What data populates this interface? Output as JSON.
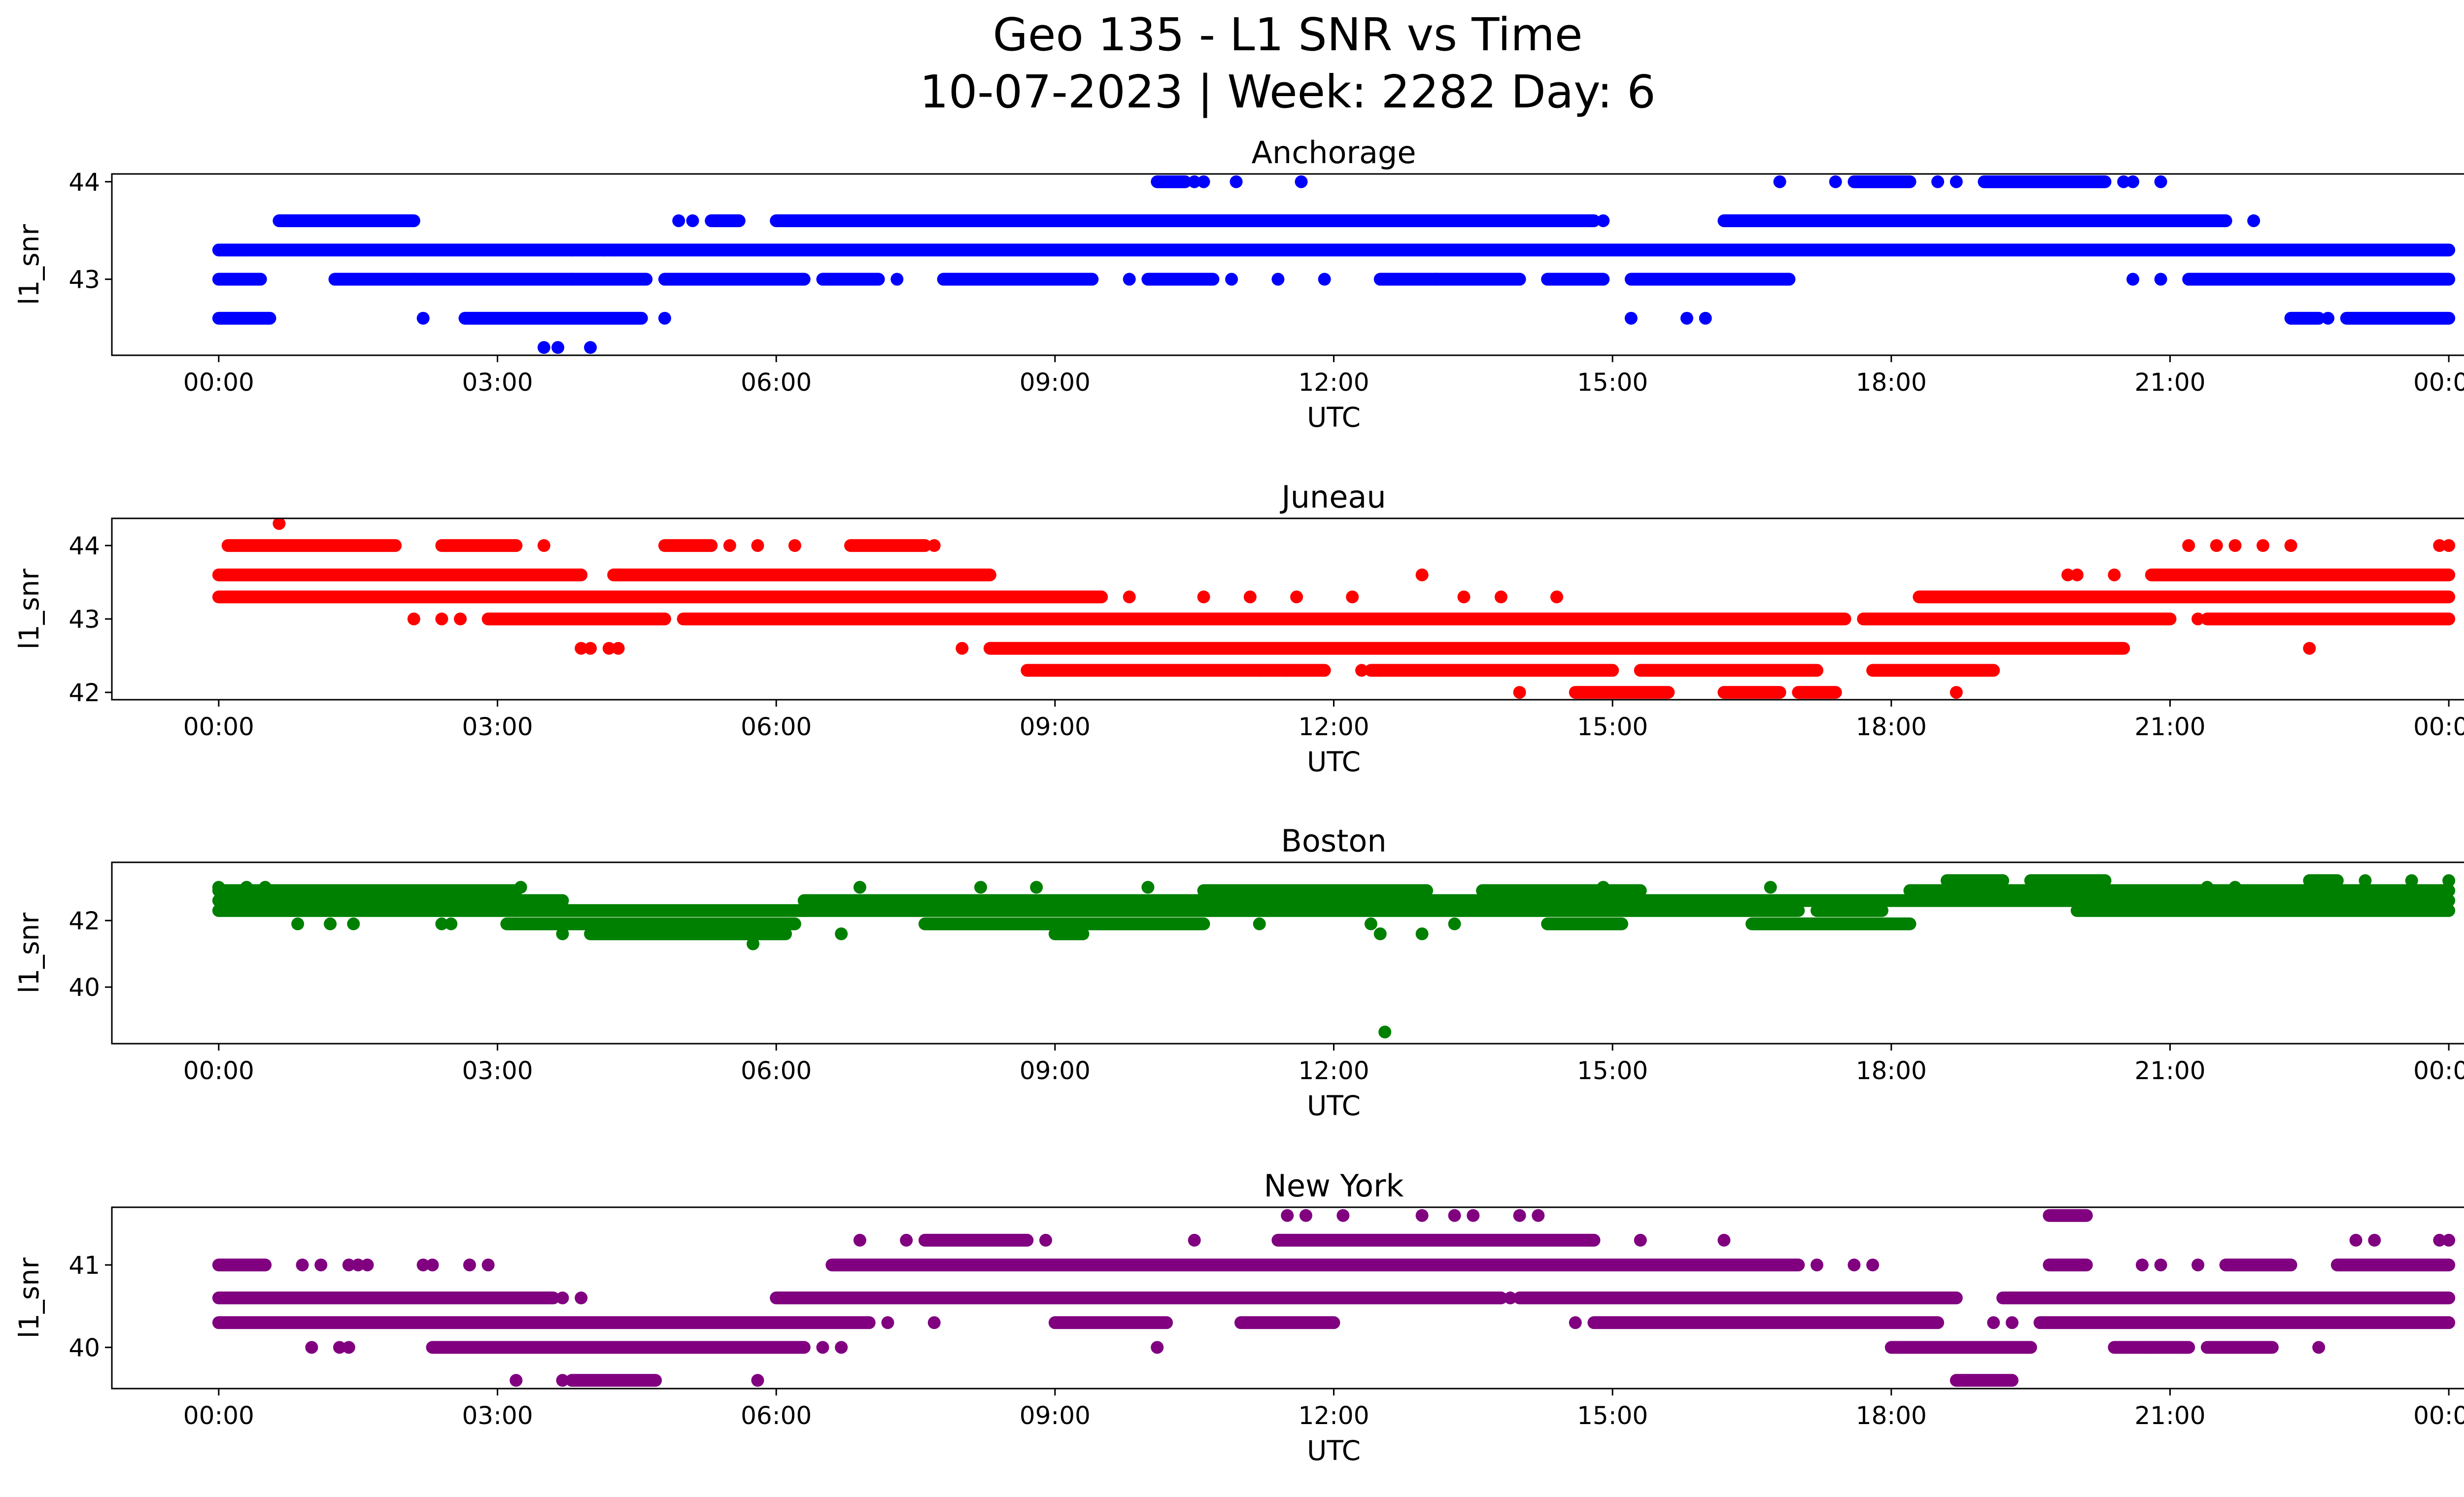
{
  "page": {
    "title_line1": "Geo 135 - L1 SNR vs Time",
    "title_line2": "10-07-2023 | Week: 2282 Day: 6"
  },
  "chart_data": [
    {
      "type": "scatter",
      "title": "Anchorage",
      "xlabel": "UTC",
      "ylabel": "l1_snr",
      "color": "#0000ff",
      "xlim_hours": [
        -1.15,
        25.15
      ],
      "ylim": [
        42.22,
        44.08
      ],
      "yticks": [
        43,
        44
      ],
      "ytick_labels": [
        "43",
        "44"
      ],
      "xticks_hours": [
        0,
        3,
        6,
        9,
        12,
        15,
        18,
        21,
        24
      ],
      "xtick_labels": [
        "00:00",
        "03:00",
        "06:00",
        "09:00",
        "12:00",
        "15:00",
        "18:00",
        "21:00",
        "00:00"
      ],
      "bands": [
        {
          "y": 43.3,
          "ranges": [
            [
              0.0,
              24.0
            ]
          ]
        },
        {
          "y": 43.0,
          "ranges": [
            [
              0.0,
              0.45
            ],
            [
              1.25,
              4.6
            ],
            [
              4.8,
              6.3
            ],
            [
              6.5,
              7.1
            ],
            [
              7.8,
              9.4
            ],
            [
              10.0,
              10.7
            ],
            [
              12.5,
              14.0
            ],
            [
              14.3,
              14.9
            ],
            [
              15.2,
              16.9
            ],
            [
              21.2,
              24.0
            ]
          ]
        },
        {
          "y": 43.6,
          "ranges": [
            [
              0.65,
              2.1
            ],
            [
              5.3,
              5.6
            ],
            [
              6.0,
              8.2
            ],
            [
              8.2,
              14.8
            ],
            [
              16.2,
              21.6
            ]
          ]
        },
        {
          "y": 42.6,
          "ranges": [
            [
              0.0,
              0.55
            ],
            [
              2.65,
              4.55
            ],
            [
              22.3,
              22.6
            ],
            [
              22.9,
              24.0
            ]
          ]
        },
        {
          "y": 44.0,
          "ranges": [
            [
              10.1,
              10.4
            ],
            [
              17.6,
              18.2
            ],
            [
              19.0,
              20.3
            ]
          ]
        }
      ],
      "points": [
        [
          2.2,
          42.6
        ],
        [
          4.8,
          42.6
        ],
        [
          15.2,
          42.6
        ],
        [
          15.8,
          42.6
        ],
        [
          16.0,
          42.6
        ],
        [
          22.7,
          42.6
        ],
        [
          3.5,
          42.3
        ],
        [
          3.65,
          42.3
        ],
        [
          4.0,
          42.3
        ],
        [
          5.1,
          43.6
        ],
        [
          4.95,
          43.6
        ],
        [
          14.9,
          43.6
        ],
        [
          21.9,
          43.6
        ],
        [
          3.8,
          43.0
        ],
        [
          2.1,
          43.0
        ],
        [
          7.3,
          43.0
        ],
        [
          9.8,
          43.0
        ],
        [
          10.9,
          43.0
        ],
        [
          11.4,
          43.0
        ],
        [
          11.9,
          43.0
        ],
        [
          13.1,
          43.0
        ],
        [
          20.6,
          43.0
        ],
        [
          20.9,
          43.0
        ],
        [
          3.8,
          43.3
        ],
        [
          4.15,
          43.3
        ],
        [
          4.25,
          43.3
        ],
        [
          10.5,
          44.0
        ],
        [
          10.6,
          44.0
        ],
        [
          10.95,
          44.0
        ],
        [
          11.65,
          44.0
        ],
        [
          16.8,
          44.0
        ],
        [
          17.4,
          44.0
        ],
        [
          18.5,
          44.0
        ],
        [
          18.7,
          44.0
        ],
        [
          20.5,
          44.0
        ],
        [
          20.6,
          44.0
        ],
        [
          20.9,
          44.0
        ]
      ]
    },
    {
      "type": "scatter",
      "title": "Juneau",
      "xlabel": "UTC",
      "ylabel": "l1_snr",
      "color": "#ff0000",
      "xlim_hours": [
        -1.15,
        25.15
      ],
      "ylim": [
        41.9,
        44.37
      ],
      "yticks": [
        42,
        43,
        44
      ],
      "ytick_labels": [
        "42",
        "43",
        "44"
      ],
      "xticks_hours": [
        0,
        3,
        6,
        9,
        12,
        15,
        18,
        21,
        24
      ],
      "xtick_labels": [
        "00:00",
        "03:00",
        "06:00",
        "09:00",
        "12:00",
        "15:00",
        "18:00",
        "21:00",
        "00:00"
      ],
      "bands": [
        {
          "y": 43.6,
          "ranges": [
            [
              0.0,
              3.9
            ],
            [
              4.25,
              8.3
            ],
            [
              20.8,
              24.0
            ]
          ]
        },
        {
          "y": 43.3,
          "ranges": [
            [
              0.0,
              9.5
            ],
            [
              18.3,
              24.0
            ]
          ]
        },
        {
          "y": 43.0,
          "ranges": [
            [
              2.9,
              4.8
            ],
            [
              5.0,
              17.5
            ],
            [
              17.7,
              21.0
            ],
            [
              21.4,
              24.0
            ]
          ]
        },
        {
          "y": 42.6,
          "ranges": [
            [
              8.3,
              20.5
            ]
          ]
        },
        {
          "y": 42.3,
          "ranges": [
            [
              8.7,
              11.9
            ],
            [
              12.4,
              15.0
            ],
            [
              15.3,
              17.2
            ],
            [
              17.8,
              19.1
            ]
          ]
        },
        {
          "y": 44.0,
          "ranges": [
            [
              0.1,
              1.9
            ],
            [
              2.4,
              3.2
            ],
            [
              4.8,
              5.3
            ],
            [
              6.8,
              7.6
            ]
          ]
        },
        {
          "y": 42.0,
          "ranges": [
            [
              14.6,
              15.6
            ],
            [
              16.2,
              16.8
            ],
            [
              17.0,
              17.4
            ]
          ]
        }
      ],
      "points": [
        [
          0.65,
          44.3
        ],
        [
          3.5,
          44.0
        ],
        [
          5.5,
          44.0
        ],
        [
          5.8,
          44.0
        ],
        [
          6.2,
          44.0
        ],
        [
          7.7,
          44.0
        ],
        [
          21.2,
          44.0
        ],
        [
          21.5,
          44.0
        ],
        [
          21.7,
          44.0
        ],
        [
          22.0,
          44.0
        ],
        [
          22.3,
          44.0
        ],
        [
          23.9,
          44.0
        ],
        [
          24.0,
          44.0
        ],
        [
          2.1,
          43.0
        ],
        [
          2.4,
          43.0
        ],
        [
          2.6,
          43.0
        ],
        [
          3.9,
          42.6
        ],
        [
          4.0,
          42.6
        ],
        [
          4.2,
          42.6
        ],
        [
          4.3,
          42.6
        ],
        [
          8.0,
          42.6
        ],
        [
          22.5,
          42.6
        ],
        [
          12.95,
          43.6
        ],
        [
          19.9,
          43.6
        ],
        [
          20.0,
          43.6
        ],
        [
          20.4,
          43.6
        ],
        [
          9.8,
          43.3
        ],
        [
          10.6,
          43.3
        ],
        [
          11.1,
          43.3
        ],
        [
          11.6,
          43.3
        ],
        [
          12.2,
          43.3
        ],
        [
          13.4,
          43.3
        ],
        [
          13.8,
          43.3
        ],
        [
          14.4,
          43.3
        ],
        [
          11.2,
          42.3
        ],
        [
          11.5,
          42.3
        ],
        [
          12.3,
          42.3
        ],
        [
          12.5,
          42.3
        ],
        [
          14.0,
          42.0
        ],
        [
          18.7,
          42.0
        ],
        [
          21.3,
          43.0
        ],
        [
          21.6,
          43.0
        ],
        [
          22.1,
          43.0
        ],
        [
          22.3,
          43.0
        ],
        [
          22.6,
          43.0
        ]
      ]
    },
    {
      "type": "scatter",
      "title": "Boston",
      "xlabel": "UTC",
      "ylabel": "l1_snr",
      "color": "#008000",
      "xlim_hours": [
        -1.15,
        25.15
      ],
      "ylim": [
        38.3,
        43.75
      ],
      "yticks": [
        40,
        42
      ],
      "ytick_labels": [
        "40",
        "42"
      ],
      "xticks_hours": [
        0,
        3,
        6,
        9,
        12,
        15,
        18,
        21,
        24
      ],
      "xtick_labels": [
        "00:00",
        "03:00",
        "06:00",
        "09:00",
        "12:00",
        "15:00",
        "18:00",
        "21:00",
        "00:00"
      ],
      "bands": [
        {
          "y": 42.9,
          "ranges": [
            [
              0.0,
              3.2
            ],
            [
              10.6,
              13.0
            ],
            [
              13.6,
              15.3
            ],
            [
              18.2,
              24.0
            ]
          ]
        },
        {
          "y": 42.6,
          "ranges": [
            [
              0.0,
              3.7
            ],
            [
              6.3,
              24.0
            ]
          ]
        },
        {
          "y": 42.3,
          "ranges": [
            [
              0.0,
              3.2
            ],
            [
              3.2,
              6.3
            ],
            [
              6.3,
              17.0
            ],
            [
              17.2,
              17.9
            ],
            [
              20.0,
              24.0
            ]
          ]
        },
        {
          "y": 41.9,
          "ranges": [
            [
              3.1,
              6.2
            ],
            [
              7.6,
              10.6
            ],
            [
              14.3,
              15.1
            ],
            [
              16.5,
              18.2
            ]
          ]
        },
        {
          "y": 41.6,
          "ranges": [
            [
              4.0,
              6.1
            ],
            [
              9.0,
              9.3
            ]
          ]
        },
        {
          "y": 43.2,
          "ranges": [
            [
              18.6,
              19.2
            ],
            [
              19.5,
              20.3
            ],
            [
              22.5,
              22.8
            ]
          ]
        }
      ],
      "points": [
        [
          5.75,
          41.3
        ],
        [
          3.7,
          41.6
        ],
        [
          6.7,
          41.6
        ],
        [
          12.5,
          41.6
        ],
        [
          12.95,
          41.6
        ],
        [
          12.55,
          38.65
        ],
        [
          0.85,
          41.9
        ],
        [
          1.2,
          41.9
        ],
        [
          1.45,
          41.9
        ],
        [
          2.4,
          41.9
        ],
        [
          2.5,
          41.9
        ],
        [
          11.2,
          41.9
        ],
        [
          12.4,
          41.9
        ],
        [
          13.3,
          41.9
        ],
        [
          0.0,
          43.0
        ],
        [
          0.3,
          43.0
        ],
        [
          0.5,
          43.0
        ],
        [
          3.25,
          43.0
        ],
        [
          6.9,
          43.0
        ],
        [
          8.2,
          43.0
        ],
        [
          8.8,
          43.0
        ],
        [
          10.0,
          43.0
        ],
        [
          14.9,
          43.0
        ],
        [
          16.7,
          43.0
        ],
        [
          21.4,
          43.0
        ],
        [
          21.7,
          43.0
        ],
        [
          23.1,
          43.2
        ],
        [
          23.6,
          43.2
        ],
        [
          24.0,
          43.2
        ]
      ]
    },
    {
      "type": "scatter",
      "title": "New York",
      "xlabel": "UTC",
      "ylabel": "l1_snr",
      "color": "#800080",
      "xlim_hours": [
        -1.15,
        25.15
      ],
      "ylim": [
        39.5,
        41.7
      ],
      "yticks": [
        40,
        41
      ],
      "ytick_labels": [
        "40",
        "41"
      ],
      "xticks_hours": [
        0,
        3,
        6,
        9,
        12,
        15,
        18,
        21,
        24
      ],
      "xtick_labels": [
        "00:00",
        "03:00",
        "06:00",
        "09:00",
        "12:00",
        "15:00",
        "18:00",
        "21:00",
        "00:00"
      ],
      "bands": [
        {
          "y": 40.6,
          "ranges": [
            [
              0.0,
              3.6
            ],
            [
              6.0,
              13.8
            ],
            [
              14.0,
              18.7
            ],
            [
              19.2,
              24.0
            ]
          ]
        },
        {
          "y": 40.3,
          "ranges": [
            [
              0.0,
              7.0
            ],
            [
              9.0,
              10.2
            ],
            [
              11.0,
              12.0
            ],
            [
              14.8,
              18.5
            ],
            [
              19.6,
              24.0
            ]
          ]
        },
        {
          "y": 41.0,
          "ranges": [
            [
              0.0,
              0.5
            ],
            [
              6.6,
              17.0
            ],
            [
              19.7,
              20.1
            ],
            [
              21.6,
              22.3
            ],
            [
              22.8,
              24.0
            ]
          ]
        },
        {
          "y": 40.0,
          "ranges": [
            [
              2.3,
              6.3
            ],
            [
              18.0,
              19.5
            ],
            [
              20.4,
              21.2
            ],
            [
              21.4,
              22.1
            ]
          ]
        },
        {
          "y": 41.3,
          "ranges": [
            [
              7.6,
              8.7
            ],
            [
              11.4,
              14.8
            ]
          ]
        },
        {
          "y": 39.6,
          "ranges": [
            [
              3.8,
              4.7
            ],
            [
              18.7,
              19.3
            ]
          ]
        },
        {
          "y": 41.6,
          "ranges": [
            [
              19.7,
              20.1
            ]
          ]
        }
      ],
      "points": [
        [
          0.9,
          41.0
        ],
        [
          1.1,
          41.0
        ],
        [
          1.4,
          41.0
        ],
        [
          1.6,
          41.0
        ],
        [
          1.5,
          41.0
        ],
        [
          2.2,
          41.0
        ],
        [
          2.3,
          41.0
        ],
        [
          2.7,
          41.0
        ],
        [
          2.9,
          41.0
        ],
        [
          17.2,
          41.0
        ],
        [
          17.6,
          41.0
        ],
        [
          17.8,
          41.0
        ],
        [
          20.7,
          41.0
        ],
        [
          20.9,
          41.0
        ],
        [
          21.3,
          41.0
        ],
        [
          6.9,
          41.3
        ],
        [
          7.4,
          41.3
        ],
        [
          8.9,
          41.3
        ],
        [
          10.5,
          41.3
        ],
        [
          15.3,
          41.3
        ],
        [
          16.2,
          41.3
        ],
        [
          23.0,
          41.3
        ],
        [
          23.2,
          41.3
        ],
        [
          23.9,
          41.3
        ],
        [
          24.0,
          41.3
        ],
        [
          11.5,
          41.6
        ],
        [
          11.7,
          41.6
        ],
        [
          12.1,
          41.6
        ],
        [
          12.95,
          41.6
        ],
        [
          13.3,
          41.6
        ],
        [
          13.5,
          41.6
        ],
        [
          14.0,
          41.6
        ],
        [
          14.2,
          41.6
        ],
        [
          1.0,
          40.0
        ],
        [
          1.3,
          40.0
        ],
        [
          1.4,
          40.0
        ],
        [
          6.5,
          40.0
        ],
        [
          6.7,
          40.0
        ],
        [
          10.1,
          40.0
        ],
        [
          22.6,
          40.0
        ],
        [
          20.8,
          40.0
        ],
        [
          3.2,
          39.6
        ],
        [
          3.7,
          39.6
        ],
        [
          5.8,
          39.6
        ],
        [
          7.2,
          40.3
        ],
        [
          7.7,
          40.3
        ],
        [
          14.6,
          40.3
        ],
        [
          19.1,
          40.3
        ],
        [
          19.3,
          40.3
        ],
        [
          3.7,
          40.6
        ],
        [
          3.9,
          40.6
        ],
        [
          13.9,
          40.6
        ]
      ]
    }
  ]
}
